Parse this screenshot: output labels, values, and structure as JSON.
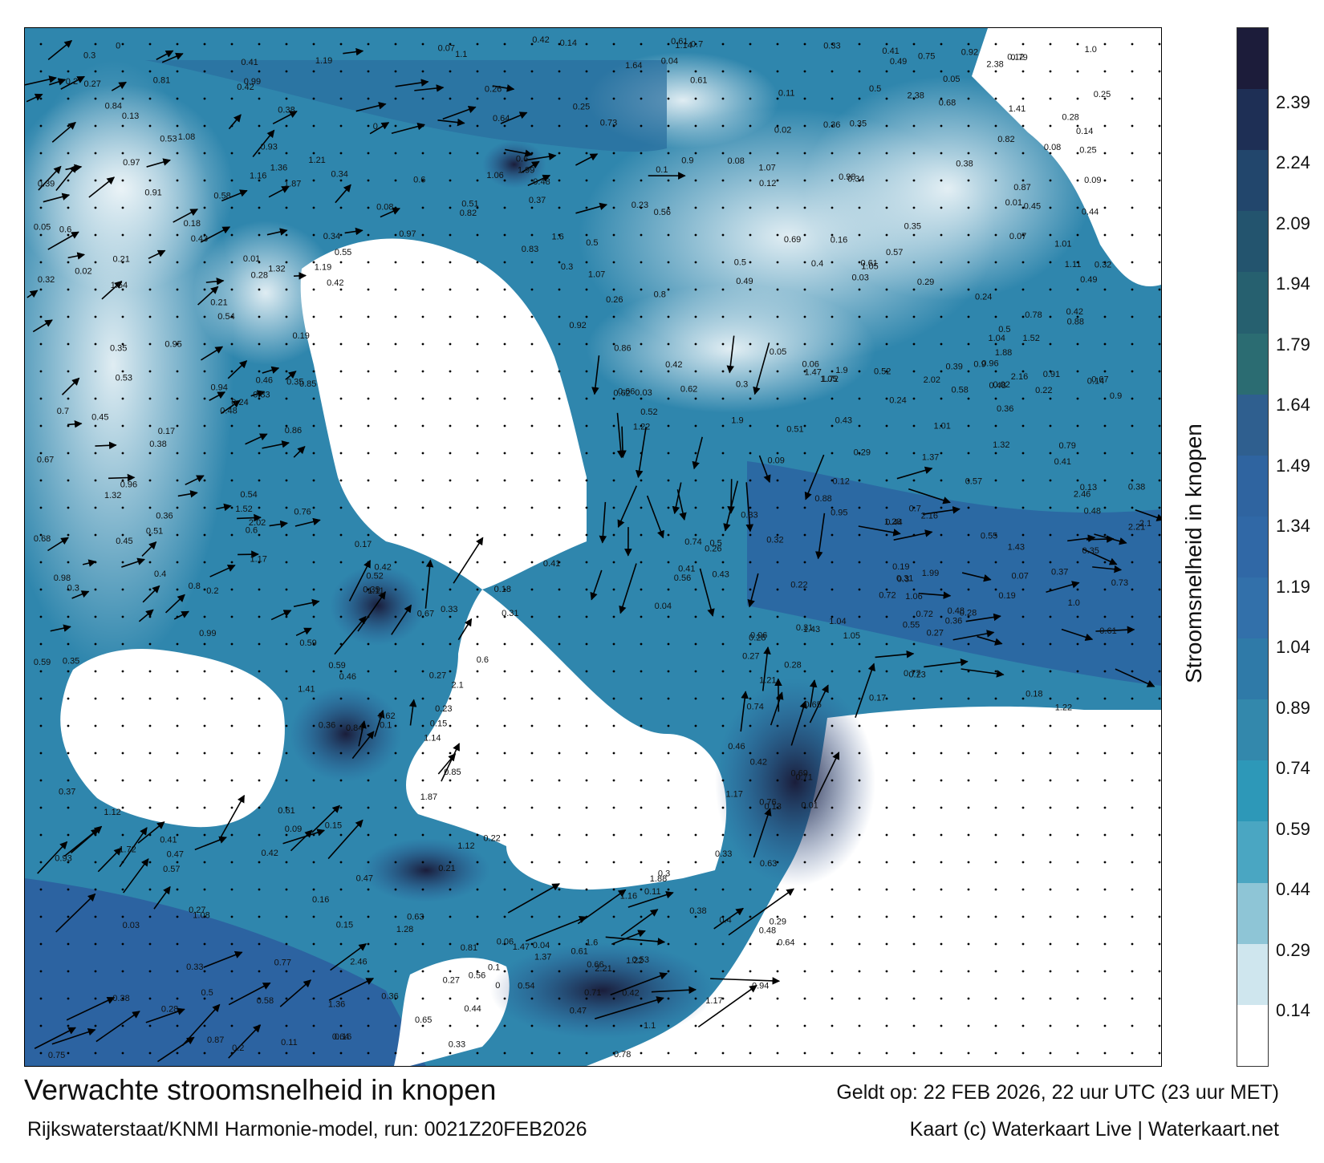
{
  "map": {
    "title": "Verwachte stroomsnelheid in knopen",
    "model_line": "Rijkswaterstaat/KNMI Harmonie-model, run: 0021Z20FEB2026",
    "valid_line": "Geldt op: 22 FEB 2026, 22 uur UTC (23 uur MET)",
    "credit_line": "Kaart (c) Waterkaart Live | Waterkaart.net"
  },
  "legend": {
    "title": "Stroomsnelheid in knopen",
    "ticks": [
      "2.39",
      "2.24",
      "2.09",
      "1.94",
      "1.79",
      "1.64",
      "1.49",
      "1.34",
      "1.19",
      "1.04",
      "0.89",
      "0.74",
      "0.59",
      "0.44",
      "0.29",
      "0.14"
    ],
    "colors": [
      "#1c1c3a",
      "#1e2f55",
      "#22466c",
      "#23546e",
      "#26606f",
      "#2b6c72",
      "#2f5f8f",
      "#2f64a0",
      "#3068a6",
      "#3270aa",
      "#2f7aa8",
      "#3388ac",
      "#2d98b8",
      "#4aa6c2",
      "#8ec5d6",
      "#cfe6ee",
      "#ffffff"
    ]
  },
  "labels": [
    "0.48",
    "0.42",
    "0.33",
    "0.27",
    "0.61",
    "0.5",
    "0.49",
    "0.38",
    "0.4",
    "0.35",
    "0.33",
    "0.3",
    "0.28",
    "0.29",
    "0.42",
    "0.41",
    "0.35",
    "0.6",
    "0.27",
    "0.28",
    "0.31",
    "0.37",
    "0.26",
    "0.3",
    "0.32",
    "0.38",
    "0.51",
    "0.36",
    "0.42",
    "0.45",
    "0.48",
    "0.46",
    "0.47",
    "0.5",
    "0.52",
    "0.56",
    "0.54",
    "0.58",
    "0.61",
    "0.64",
    "0.7",
    "0.67",
    "0.62",
    "0.55",
    "0.44",
    "0.41",
    "0.9",
    "1.17",
    "1.22",
    "1.32",
    "1.05",
    "0.36",
    "0.22",
    "0.24",
    "0.18",
    "0.16",
    "0.13",
    "0.12",
    "0.15",
    "0.11",
    "0.1",
    "0.09",
    "0.08",
    "0.07",
    "0.06",
    "0.05",
    "0.04",
    "0.03",
    "0.02",
    "0.01",
    "0",
    "0.14",
    "0.17",
    "0.19",
    "0.2",
    "0.21",
    "0.23",
    "0.25",
    "0.34",
    "0.39",
    "0.43",
    "0.53",
    "0.57",
    "0.59",
    "0.63",
    "0.65",
    "0.68",
    "0.71",
    "0.72",
    "0.73",
    "0.75",
    "0.76",
    "0.78",
    "0.8",
    "0.82",
    "0.84",
    "0.86",
    "0.88",
    "0.91",
    "0.93",
    "0.94",
    "0.95",
    "0.96",
    "0.97",
    "0.98",
    "0.99",
    "1.0",
    "1.04",
    "1.07",
    "1.08",
    "1.1",
    "1.12",
    "1.16",
    "1.19",
    "1.28",
    "1.37",
    "1.41",
    "1.47",
    "1.52",
    "1.6",
    "1.64",
    "1.72",
    "1.87",
    "1.9",
    "1.99",
    "2.02",
    "2.1",
    "2.16",
    "2.21",
    "2.38",
    "2.46",
    "1.88",
    "1.36",
    "1.43",
    "1.21",
    "1.11",
    "1.14",
    "1.06",
    "1.01",
    "0.92",
    "0.87",
    "0.85",
    "0.83",
    "0.81",
    "0.79",
    "0.77",
    "0.74",
    "0.69",
    "0.66",
    "0.6"
  ]
}
